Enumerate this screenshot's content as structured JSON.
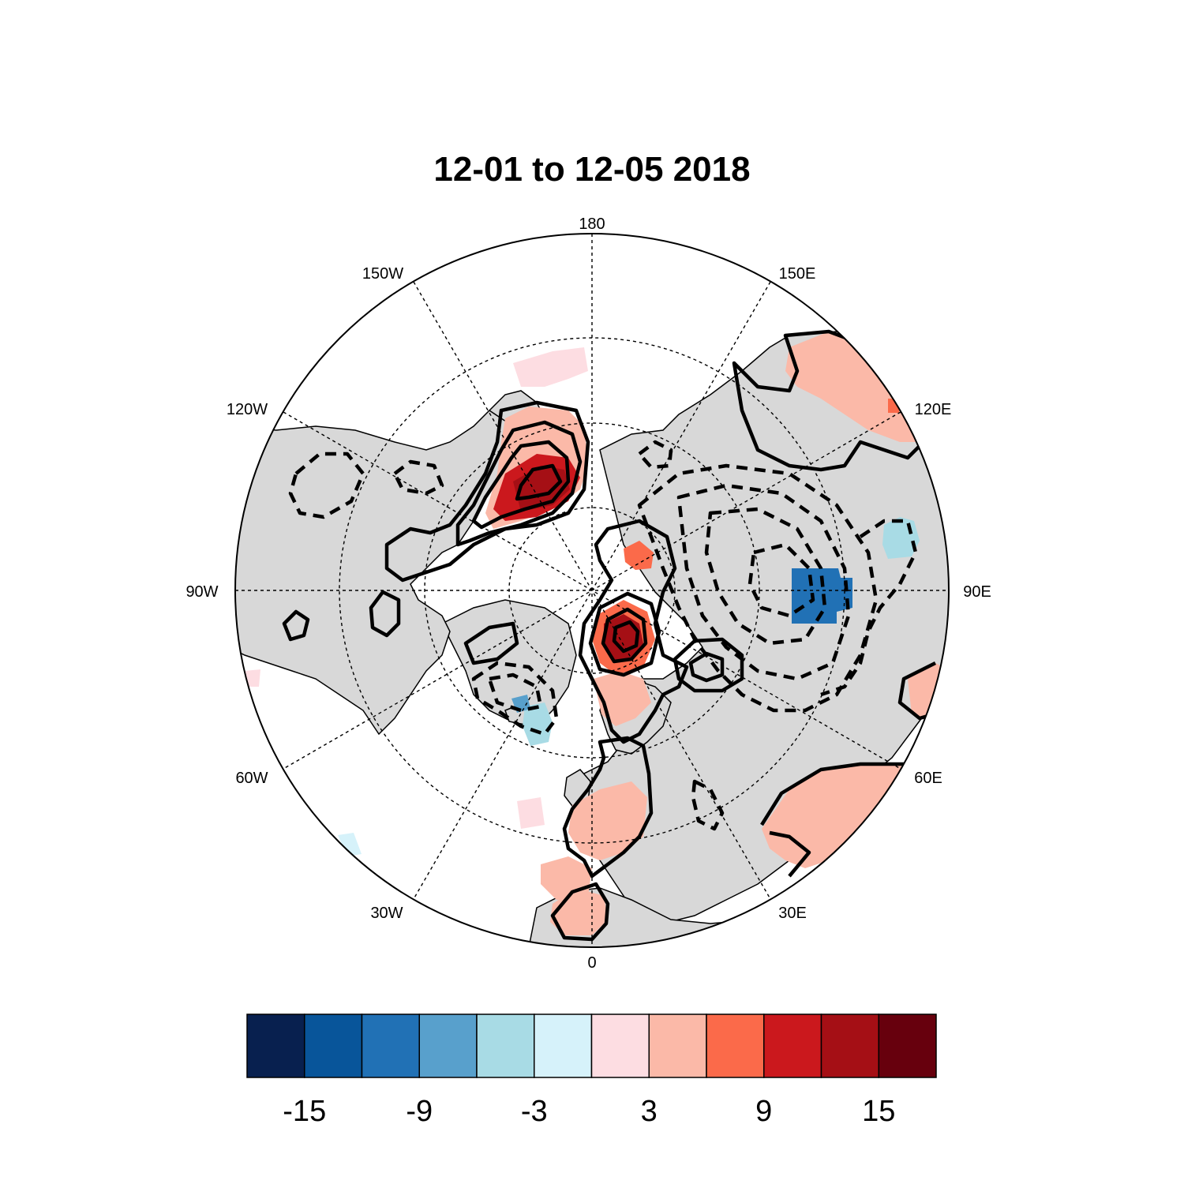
{
  "title": "12-01 to 12-05 2018",
  "longitude_labels": [
    "180",
    "150E",
    "120E",
    "90E",
    "60E",
    "30E",
    "0",
    "30W",
    "60W",
    "90W",
    "120W",
    "150W"
  ],
  "colorbar": {
    "colors": [
      "#08204f",
      "#08559a",
      "#2171b5",
      "#58a0cc",
      "#a8dbe5",
      "#d6f2fa",
      "#fddde2",
      "#fbb9a8",
      "#fb6a4a",
      "#cb181d",
      "#a50f15",
      "#67000d"
    ],
    "tick_labels": [
      "-15",
      "-9",
      "-3",
      "3",
      "9",
      "15"
    ]
  },
  "colors": {
    "land": "#d8d8d8",
    "ocean": "#ffffff",
    "contour": "#000000"
  }
}
